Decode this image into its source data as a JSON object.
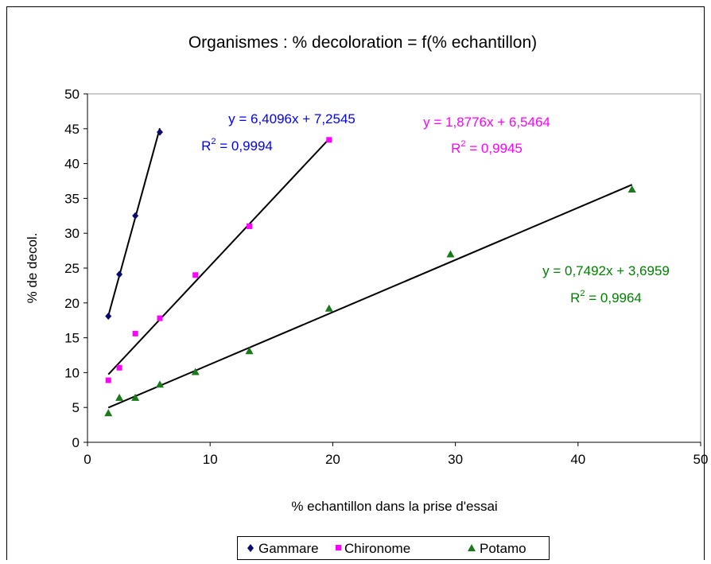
{
  "chart_data": {
    "type": "scatter",
    "title": "Organismes : % decoloration = f(% echantillon)",
    "xlabel": "% echantillon dans la prise d'essai",
    "ylabel": "% de decol.",
    "xlim": [
      0,
      50
    ],
    "ylim": [
      0,
      50
    ],
    "xticks": [
      "0",
      "10",
      "20",
      "30",
      "40",
      "50"
    ],
    "yticks": [
      "0",
      "5",
      "10",
      "15",
      "20",
      "25",
      "30",
      "35",
      "40",
      "45",
      "50"
    ],
    "grid": false,
    "legend_position": "bottom",
    "series": [
      {
        "name": "Gammare",
        "marker": "diamond",
        "color": "#0a0a6e",
        "label_color": "#0000ff",
        "x": [
          1.7,
          2.6,
          3.9,
          5.9
        ],
        "y": [
          18.1,
          24.1,
          32.5,
          44.5
        ],
        "trendline": {
          "slope": 6.4096,
          "intercept": 7.2545,
          "x_range": [
            1.7,
            5.9
          ]
        },
        "equation": "y = 6,4096x + 7,2545",
        "r2_label": "R",
        "r2_value": " = 0,9994"
      },
      {
        "name": "Chironome",
        "marker": "square",
        "color": "#ff00ff",
        "label_color": "#ff00ff",
        "x": [
          1.7,
          2.6,
          3.9,
          5.9,
          8.8,
          13.2,
          19.7
        ],
        "y": [
          8.9,
          10.7,
          15.6,
          17.8,
          24.0,
          31.0,
          43.4
        ],
        "trendline": {
          "slope": 1.8776,
          "intercept": 6.5464,
          "x_range": [
            1.7,
            19.7
          ]
        },
        "equation": "y = 1,8776x + 6,5464",
        "r2_label": "R",
        "r2_value": " = 0,9945"
      },
      {
        "name": "Potamo",
        "marker": "triangle",
        "color": "#1a7a1a",
        "label_color": "#008000",
        "x": [
          1.7,
          2.6,
          3.9,
          5.9,
          8.8,
          13.2,
          19.7,
          29.6,
          44.4
        ],
        "y": [
          4.2,
          6.4,
          6.4,
          8.3,
          10.1,
          13.1,
          19.2,
          27.0,
          36.3
        ],
        "trendline": {
          "slope": 0.7492,
          "intercept": 3.6959,
          "x_range": [
            1.7,
            44.4
          ]
        },
        "equation": "y = 0,7492x + 3,6959",
        "r2_label": "R",
        "r2_value": " = 0,9964"
      }
    ]
  }
}
